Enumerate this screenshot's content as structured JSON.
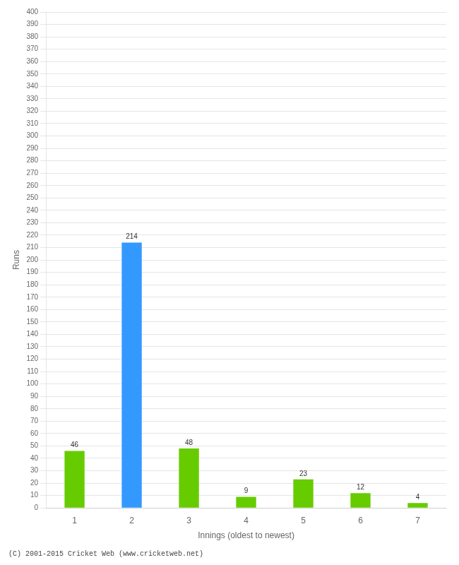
{
  "chart_data": {
    "type": "bar",
    "categories": [
      "1",
      "2",
      "3",
      "4",
      "5",
      "6",
      "7"
    ],
    "values": [
      46,
      214,
      48,
      9,
      23,
      12,
      4
    ],
    "colors": [
      "#66cc00",
      "#3399ff",
      "#66cc00",
      "#66cc00",
      "#66cc00",
      "#66cc00",
      "#66cc00"
    ],
    "xlabel": "Innings (oldest to newest)",
    "ylabel": "Runs",
    "footer": "(C) 2001-2015 Cricket Web (www.cricketweb.net)",
    "ylim": [
      0,
      400
    ],
    "yticks": [
      0,
      10,
      20,
      30,
      40,
      50,
      60,
      70,
      80,
      90,
      100,
      110,
      120,
      130,
      140,
      150,
      160,
      170,
      180,
      190,
      200,
      210,
      220,
      230,
      240,
      250,
      260,
      270,
      280,
      290,
      300,
      310,
      320,
      330,
      340,
      350,
      360,
      370,
      380,
      390,
      400
    ],
    "grid": true,
    "data_labels": true
  }
}
